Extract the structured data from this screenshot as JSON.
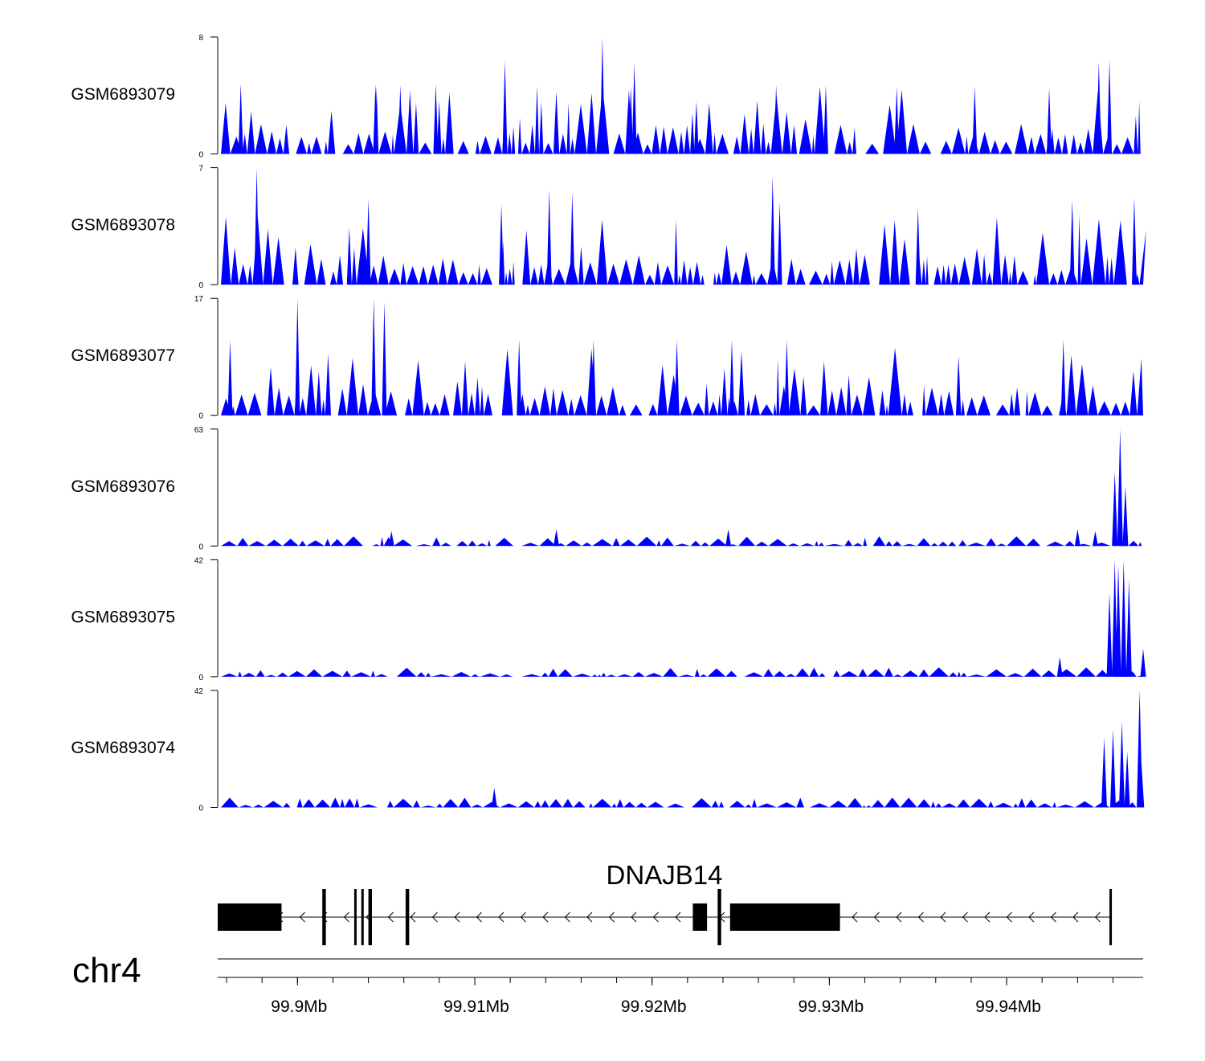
{
  "chart_data": {
    "type": "area",
    "title": "",
    "chromosome": "chr4",
    "region": {
      "start_mb": 99.8955,
      "end_mb": 99.9477
    },
    "series_color": "#0000ff",
    "tracks": [
      {
        "name": "GSM6893079",
        "ylim": [
          0,
          8
        ],
        "tick_labels": [
          "0",
          "8"
        ],
        "peaks": [
          {
            "pos": 99.9172,
            "value": 8
          },
          {
            "pos": 99.9452,
            "value": 6.3
          },
          {
            "pos": 99.9458,
            "value": 6.4
          },
          {
            "pos": 99.9117,
            "value": 6.4
          },
          {
            "pos": 99.919,
            "value": 6.2
          },
          {
            "pos": 99.9078,
            "value": 4.8
          },
          {
            "pos": 99.9188,
            "value": 4.6
          },
          {
            "pos": 99.8968,
            "value": 4.8
          },
          {
            "pos": 99.9044,
            "value": 4.8
          },
          {
            "pos": 99.9058,
            "value": 4.7
          },
          {
            "pos": 99.9225,
            "value": 3.6
          },
          {
            "pos": 99.927,
            "value": 4.7
          },
          {
            "pos": 99.9298,
            "value": 4.7
          },
          {
            "pos": 99.9338,
            "value": 4.6
          },
          {
            "pos": 99.9382,
            "value": 4.6
          },
          {
            "pos": 99.9424,
            "value": 4.5
          }
        ]
      },
      {
        "name": "GSM6893078",
        "ylim": [
          0,
          7
        ],
        "tick_labels": [
          "0",
          "7"
        ],
        "peaks": [
          {
            "pos": 99.8977,
            "value": 7
          },
          {
            "pos": 99.9268,
            "value": 6.5
          },
          {
            "pos": 99.904,
            "value": 5.1
          },
          {
            "pos": 99.9142,
            "value": 5.7
          },
          {
            "pos": 99.9155,
            "value": 5.5
          },
          {
            "pos": 99.9272,
            "value": 4.9
          },
          {
            "pos": 99.9437,
            "value": 5.1
          },
          {
            "pos": 99.9472,
            "value": 5.2
          },
          {
            "pos": 99.9115,
            "value": 4.8
          },
          {
            "pos": 99.935,
            "value": 4.6
          }
        ]
      },
      {
        "name": "GSM6893077",
        "ylim": [
          0,
          17
        ],
        "tick_labels": [
          "0",
          "17"
        ],
        "peaks": [
          {
            "pos": 99.9043,
            "value": 17
          },
          {
            "pos": 99.9049,
            "value": 16.5
          },
          {
            "pos": 99.9,
            "value": 17
          },
          {
            "pos": 99.8962,
            "value": 11
          },
          {
            "pos": 99.9167,
            "value": 11
          },
          {
            "pos": 99.9214,
            "value": 11
          },
          {
            "pos": 99.9245,
            "value": 11
          },
          {
            "pos": 99.9276,
            "value": 11
          },
          {
            "pos": 99.9432,
            "value": 11
          },
          {
            "pos": 99.9125,
            "value": 11
          }
        ]
      },
      {
        "name": "GSM6893076",
        "ylim": [
          0,
          63
        ],
        "tick_labels": [
          "0",
          "63"
        ],
        "peaks": [
          {
            "pos": 99.9464,
            "value": 63
          },
          {
            "pos": 99.9461,
            "value": 40
          },
          {
            "pos": 99.9467,
            "value": 32
          },
          {
            "pos": 99.9146,
            "value": 9
          },
          {
            "pos": 99.9243,
            "value": 9
          },
          {
            "pos": 99.9053,
            "value": 8
          },
          {
            "pos": 99.944,
            "value": 9
          },
          {
            "pos": 99.945,
            "value": 8
          }
        ]
      },
      {
        "name": "GSM6893075",
        "ylim": [
          0,
          42
        ],
        "tick_labels": [
          "0",
          "42"
        ],
        "peaks": [
          {
            "pos": 99.9461,
            "value": 42
          },
          {
            "pos": 99.9466,
            "value": 42
          },
          {
            "pos": 99.9463,
            "value": 40
          },
          {
            "pos": 99.9469,
            "value": 35
          },
          {
            "pos": 99.9458,
            "value": 30
          },
          {
            "pos": 99.943,
            "value": 7
          },
          {
            "pos": 99.9477,
            "value": 10
          }
        ]
      },
      {
        "name": "GSM6893074",
        "ylim": [
          0,
          42
        ],
        "tick_labels": [
          "0",
          "42"
        ],
        "peaks": [
          {
            "pos": 99.9475,
            "value": 42
          },
          {
            "pos": 99.9465,
            "value": 31
          },
          {
            "pos": 99.946,
            "value": 28
          },
          {
            "pos": 99.9455,
            "value": 25
          },
          {
            "pos": 99.9468,
            "value": 20
          },
          {
            "pos": 99.9476,
            "value": 16
          },
          {
            "pos": 99.9111,
            "value": 7
          }
        ]
      }
    ],
    "gene": {
      "name": "DNAJB14",
      "strand": "-",
      "start_mb": 99.8955,
      "end_mb": 99.9459,
      "exons_mb": [
        [
          99.8955,
          99.8991
        ],
        [
          99.9014,
          99.9016
        ],
        [
          99.9032,
          99.9033
        ],
        [
          99.9036,
          99.9037
        ],
        [
          99.904,
          99.9042
        ],
        [
          99.9061,
          99.9063
        ],
        [
          99.9223,
          99.9231
        ],
        [
          99.9237,
          99.9239
        ],
        [
          99.9244,
          99.9306
        ],
        [
          99.9458,
          99.9459
        ]
      ]
    },
    "x_axis": {
      "ticks_mb": [
        99.9,
        99.91,
        99.92,
        99.93,
        99.94
      ],
      "tick_labels": [
        "99.9Mb",
        "99.91Mb",
        "99.92Mb",
        "99.93Mb",
        "99.94Mb"
      ],
      "minor_tick_step_mb": 0.002
    }
  }
}
